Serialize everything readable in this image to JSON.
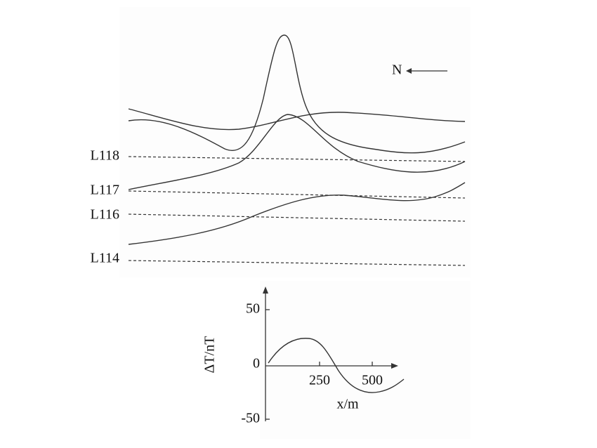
{
  "profiles": {
    "north": "N",
    "lines": [
      "L118",
      "L117",
      "L116",
      "L114"
    ]
  },
  "inset": {
    "y_label": "ΔT/nT",
    "x_label": "x/m",
    "y_ticks": [
      "50",
      "0",
      "-50"
    ],
    "x_ticks": [
      "250",
      "500"
    ]
  }
}
